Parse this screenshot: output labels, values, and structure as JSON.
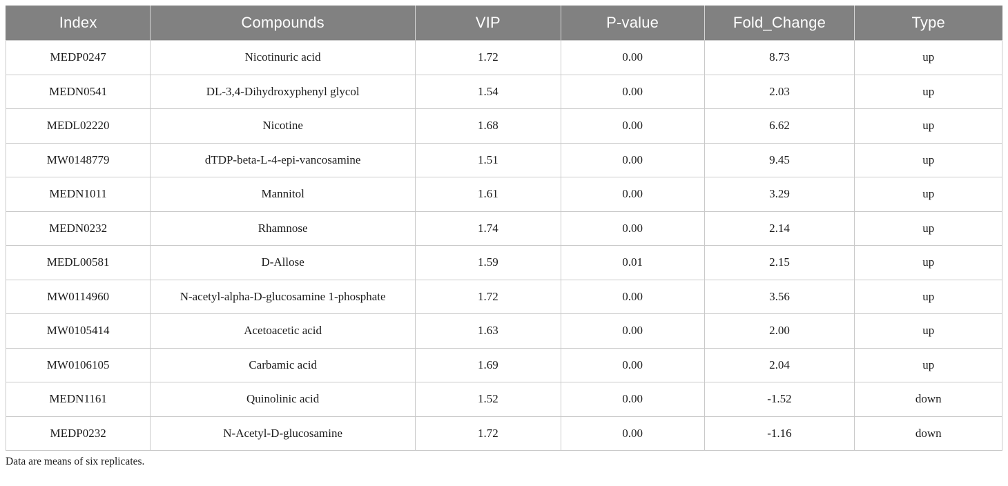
{
  "table": {
    "columns": [
      {
        "key": "index",
        "label": "Index"
      },
      {
        "key": "compound",
        "label": "Compounds"
      },
      {
        "key": "vip",
        "label": "VIP"
      },
      {
        "key": "pvalue",
        "label": "P-value"
      },
      {
        "key": "fold_change",
        "label": "Fold_Change"
      },
      {
        "key": "type",
        "label": "Type"
      }
    ],
    "rows": [
      {
        "index": "MEDP0247",
        "compound": "Nicotinuric acid",
        "vip": "1.72",
        "pvalue": "0.00",
        "fold_change": "8.73",
        "type": "up"
      },
      {
        "index": "MEDN0541",
        "compound": "DL-3,4-Dihydroxyphenyl glycol",
        "vip": "1.54",
        "pvalue": "0.00",
        "fold_change": "2.03",
        "type": "up"
      },
      {
        "index": "MEDL02220",
        "compound": "Nicotine",
        "vip": "1.68",
        "pvalue": "0.00",
        "fold_change": "6.62",
        "type": "up"
      },
      {
        "index": "MW0148779",
        "compound": "dTDP-beta-L-4-epi-vancosamine",
        "vip": "1.51",
        "pvalue": "0.00",
        "fold_change": "9.45",
        "type": "up"
      },
      {
        "index": "MEDN1011",
        "compound": "Mannitol",
        "vip": "1.61",
        "pvalue": "0.00",
        "fold_change": "3.29",
        "type": "up"
      },
      {
        "index": "MEDN0232",
        "compound": "Rhamnose",
        "vip": "1.74",
        "pvalue": "0.00",
        "fold_change": "2.14",
        "type": "up"
      },
      {
        "index": "MEDL00581",
        "compound": "D-Allose",
        "vip": "1.59",
        "pvalue": "0.01",
        "fold_change": "2.15",
        "type": "up"
      },
      {
        "index": "MW0114960",
        "compound": "N-acetyl-alpha-D-glucosamine 1-phosphate",
        "vip": "1.72",
        "pvalue": "0.00",
        "fold_change": "3.56",
        "type": "up"
      },
      {
        "index": "MW0105414",
        "compound": "Acetoacetic acid",
        "vip": "1.63",
        "pvalue": "0.00",
        "fold_change": "2.00",
        "type": "up"
      },
      {
        "index": "MW0106105",
        "compound": "Carbamic acid",
        "vip": "1.69",
        "pvalue": "0.00",
        "fold_change": "2.04",
        "type": "up"
      },
      {
        "index": "MEDN1161",
        "compound": "Quinolinic acid",
        "vip": "1.52",
        "pvalue": "0.00",
        "fold_change": "-1.52",
        "type": "down"
      },
      {
        "index": "MEDP0232",
        "compound": "N-Acetyl-D-glucosamine",
        "vip": "1.72",
        "pvalue": "0.00",
        "fold_change": "-1.16",
        "type": "down"
      }
    ],
    "footnote": "Data are means of six replicates."
  },
  "colors": {
    "header_bg": "#818181",
    "header_text": "#fdfdfd",
    "body_text": "#1c1c1c",
    "border": "#c9c9c9",
    "background": "#ffffff"
  }
}
